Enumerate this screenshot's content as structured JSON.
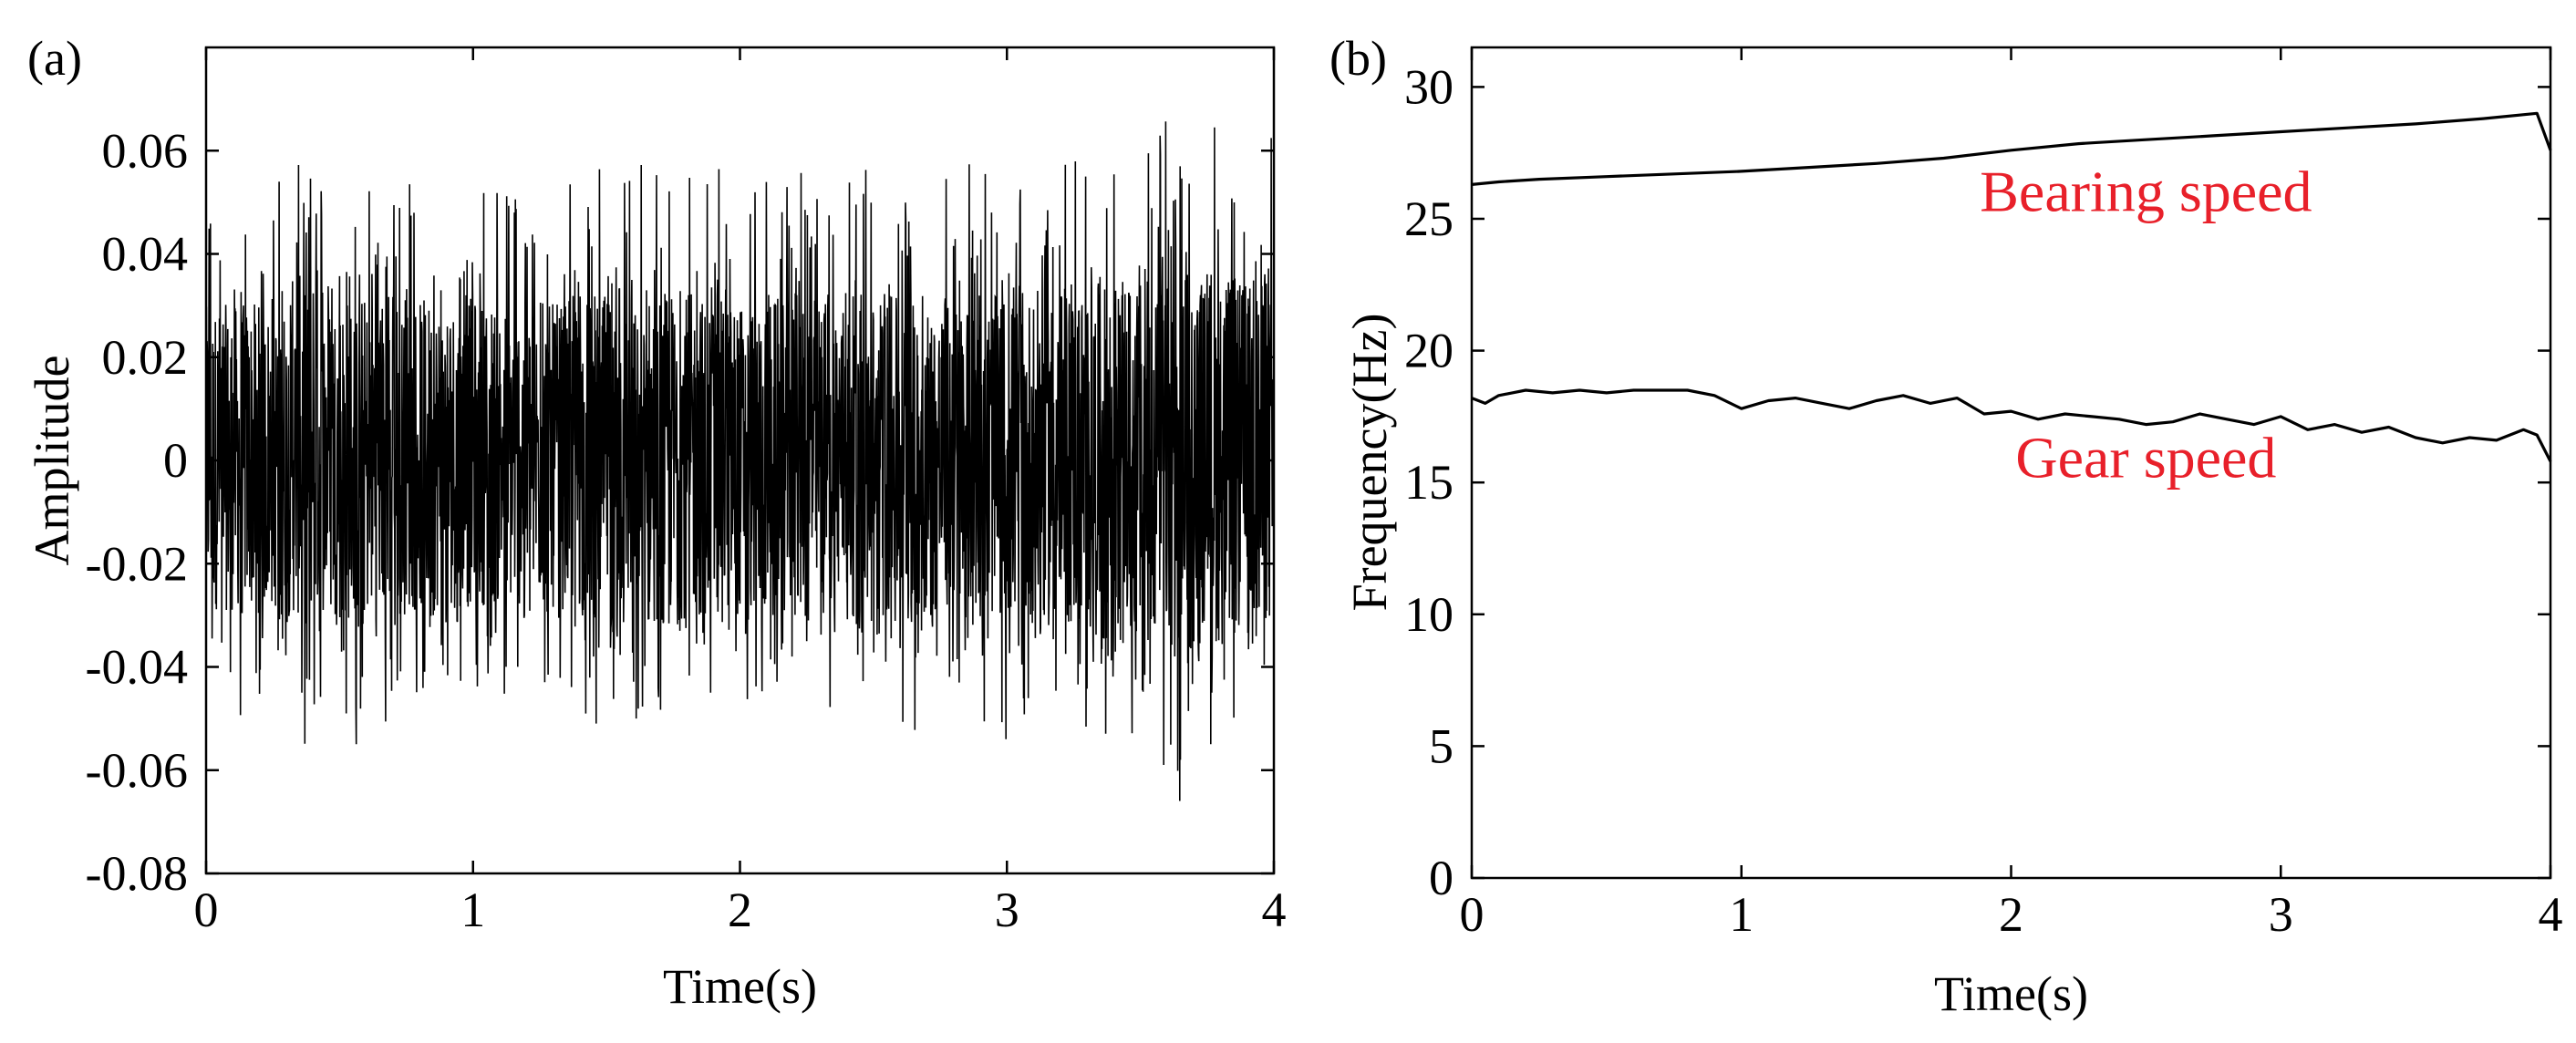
{
  "chart_data": [
    {
      "panel_label": "(a)",
      "type": "line",
      "xlabel": "Time(s)",
      "ylabel": "Amplitude",
      "xlim": [
        0,
        4
      ],
      "ylim": [
        -0.08,
        0.08
      ],
      "xticks": [
        0,
        1,
        2,
        3,
        4
      ],
      "yticks": [
        -0.08,
        -0.06,
        -0.04,
        -0.02,
        0,
        0.02,
        0.04,
        0.06
      ],
      "xtick_labels": [
        "0",
        "1",
        "2",
        "3",
        "4"
      ],
      "ytick_labels": [
        "-0.08",
        "-0.06",
        "-0.04",
        "-0.02",
        "0",
        "0.02",
        "0.04",
        "0.06"
      ],
      "grid": false,
      "series": [
        {
          "kind": "vibration-signal-envelope",
          "x": [
            0,
            0.25,
            0.5,
            0.75,
            1.0,
            1.25,
            1.5,
            1.75,
            2.0,
            2.25,
            2.5,
            2.75,
            3.0,
            3.25,
            3.5,
            3.75,
            4.0
          ],
          "upper_peak": [
            0.05,
            0.055,
            0.061,
            0.057,
            0.06,
            0.055,
            0.058,
            0.06,
            0.055,
            0.056,
            0.059,
            0.057,
            0.059,
            0.063,
            0.066,
            0.067,
            0.064
          ],
          "lower_peak": [
            -0.05,
            -0.054,
            -0.059,
            -0.05,
            -0.046,
            -0.048,
            -0.052,
            -0.05,
            -0.05,
            -0.048,
            -0.054,
            -0.052,
            -0.056,
            -0.058,
            -0.068,
            -0.066,
            -0.062
          ],
          "core_upper": [
            0.03,
            0.031,
            0.033,
            0.031,
            0.032,
            0.03,
            0.032,
            0.033,
            0.031,
            0.032,
            0.032,
            0.031,
            0.032,
            0.034,
            0.035,
            0.036,
            0.034
          ],
          "core_lower": [
            -0.029,
            -0.03,
            -0.032,
            -0.03,
            -0.028,
            -0.029,
            -0.03,
            -0.031,
            -0.03,
            -0.029,
            -0.031,
            -0.03,
            -0.031,
            -0.033,
            -0.036,
            -0.036,
            -0.034
          ],
          "color": "#000000"
        }
      ]
    },
    {
      "panel_label": "(b)",
      "type": "line",
      "xlabel": "Time(s)",
      "ylabel": "Frequency(Hz)",
      "xlim": [
        0,
        4
      ],
      "ylim": [
        0,
        31.5
      ],
      "xticks": [
        0,
        1,
        2,
        3,
        4
      ],
      "yticks": [
        0,
        5,
        10,
        15,
        20,
        25,
        30
      ],
      "xtick_labels": [
        "0",
        "1",
        "2",
        "3",
        "4"
      ],
      "ytick_labels": [
        "0",
        "5",
        "10",
        "15",
        "20",
        "25",
        "30"
      ],
      "grid": false,
      "series": [
        {
          "x": [
            0,
            0.1,
            0.25,
            0.5,
            0.75,
            1.0,
            1.25,
            1.5,
            1.75,
            2.0,
            2.25,
            2.5,
            2.75,
            3.0,
            3.25,
            3.5,
            3.75,
            3.95,
            4.0
          ],
          "y": [
            26.3,
            26.4,
            26.5,
            26.6,
            26.7,
            26.8,
            26.95,
            27.1,
            27.3,
            27.6,
            27.85,
            28.0,
            28.15,
            28.3,
            28.45,
            28.6,
            28.8,
            29.0,
            27.6
          ],
          "color": "#000000"
        },
        {
          "x": [
            0,
            0.05,
            0.1,
            0.15,
            0.2,
            0.3,
            0.4,
            0.5,
            0.6,
            0.7,
            0.8,
            0.9,
            1.0,
            1.1,
            1.2,
            1.3,
            1.4,
            1.5,
            1.6,
            1.7,
            1.8,
            1.9,
            2.0,
            2.1,
            2.2,
            2.3,
            2.4,
            2.5,
            2.6,
            2.7,
            2.8,
            2.9,
            3.0,
            3.1,
            3.2,
            3.3,
            3.4,
            3.5,
            3.6,
            3.7,
            3.8,
            3.9,
            3.95,
            4.0
          ],
          "y": [
            18.2,
            18.0,
            18.3,
            18.4,
            18.5,
            18.4,
            18.5,
            18.4,
            18.5,
            18.5,
            18.5,
            18.3,
            17.8,
            18.1,
            18.2,
            18.0,
            17.8,
            18.1,
            18.3,
            18.0,
            18.2,
            17.6,
            17.7,
            17.4,
            17.6,
            17.5,
            17.4,
            17.2,
            17.3,
            17.6,
            17.4,
            17.2,
            17.5,
            17.0,
            17.2,
            16.9,
            17.1,
            16.7,
            16.5,
            16.7,
            16.6,
            17.0,
            16.8,
            15.8
          ],
          "color": "#000000"
        }
      ],
      "annotations": [
        {
          "text": "Bearing speed",
          "x": 2.5,
          "y": 25.3,
          "color": "#e8202a"
        },
        {
          "text": "Gear speed",
          "x": 2.5,
          "y": 15.2,
          "color": "#e8202a"
        }
      ]
    }
  ]
}
